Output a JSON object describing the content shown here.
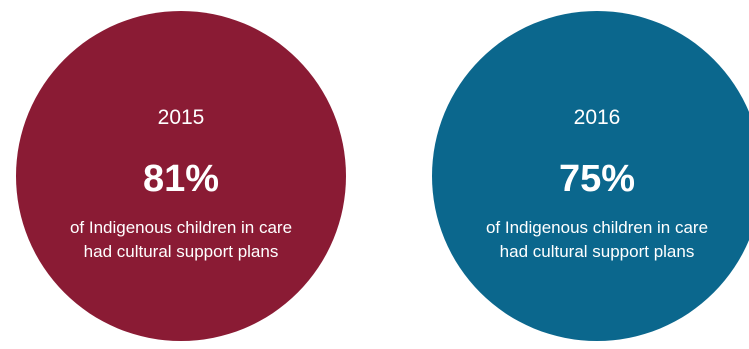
{
  "chart_data": {
    "type": "table",
    "categories": [
      "2015",
      "2016"
    ],
    "values": [
      81,
      75
    ],
    "items": [
      {
        "year": "2015",
        "value": 81,
        "value_label": "81%",
        "line1": "of Indigenous children in care",
        "line2": "had cultural support plans",
        "color": "#8a1b34"
      },
      {
        "year": "2016",
        "value": 75,
        "value_label": "75%",
        "line1": "of Indigenous children in care",
        "line2": "had cultural support plans",
        "color": "#0b678d"
      }
    ]
  }
}
